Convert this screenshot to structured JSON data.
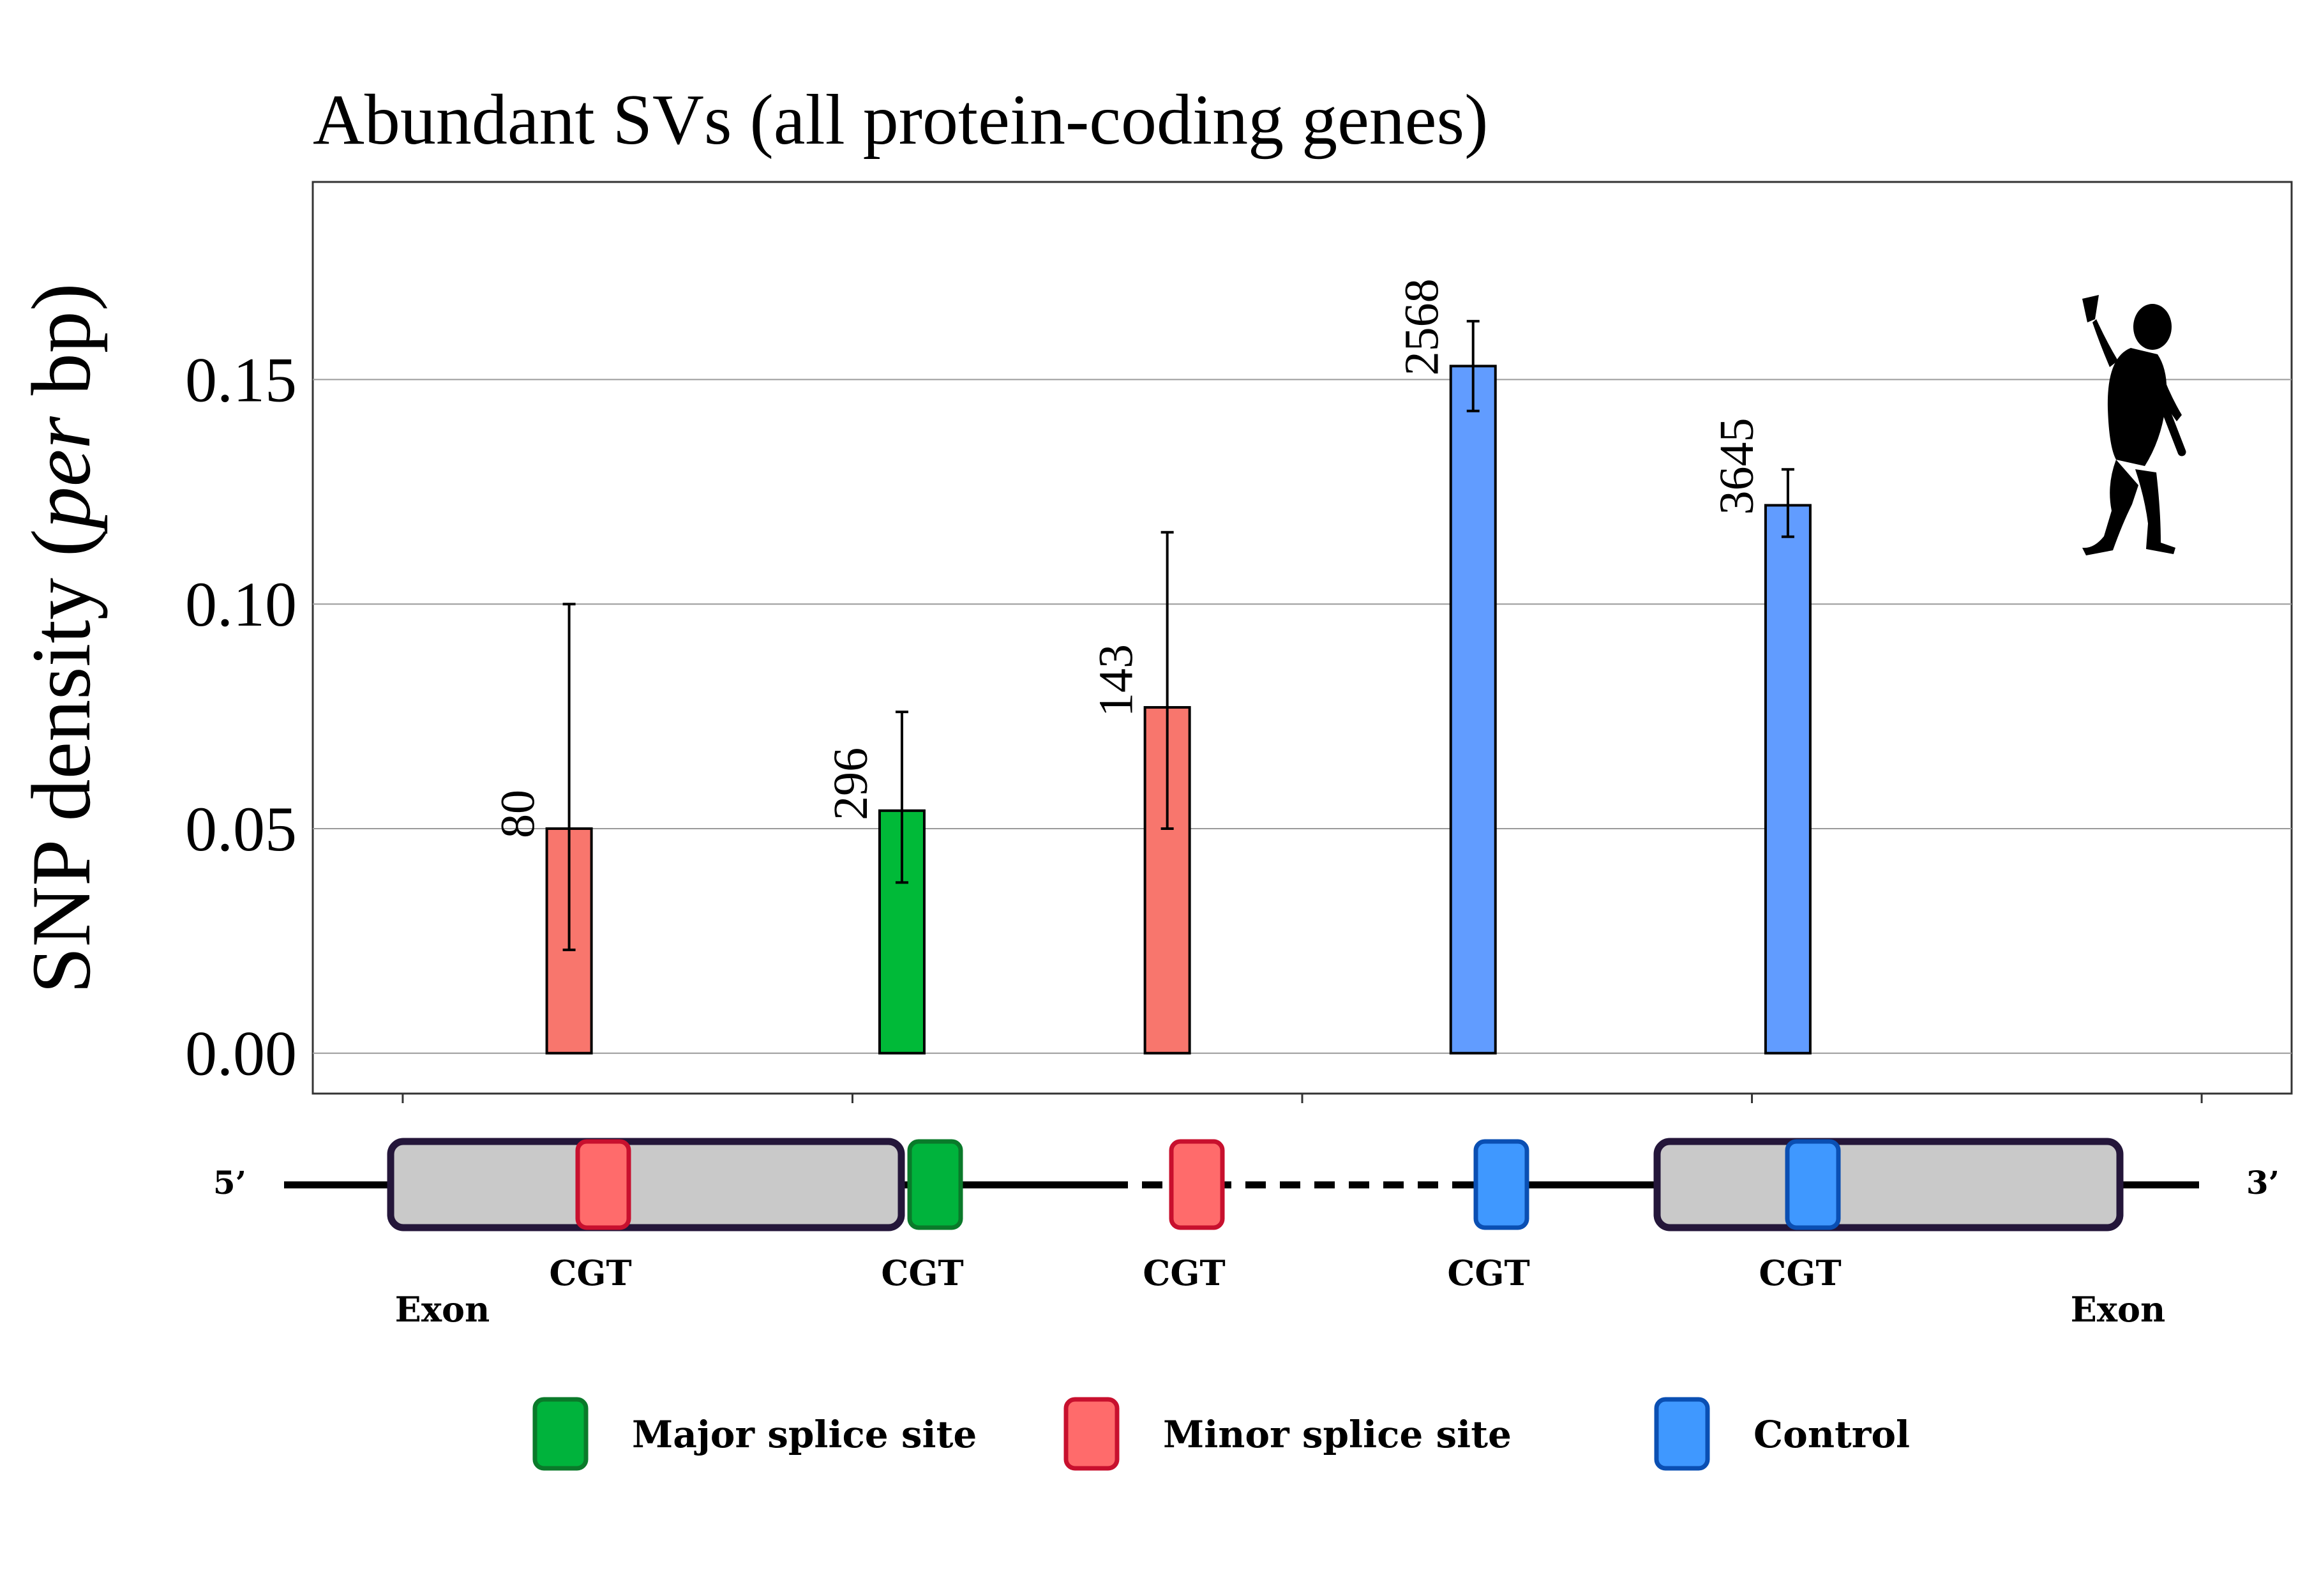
{
  "chart_data": {
    "type": "bar",
    "title": "Abundant SVs (all protein-coding genes)",
    "ylabel_prefix": "SNP density (",
    "ylabel_italic": "per",
    "ylabel_suffix": " bp)",
    "xlabel": "",
    "ylim": [
      -0.009,
      0.194
    ],
    "yticks": [
      "0.00",
      "0.05",
      "0.10",
      "0.15"
    ],
    "ytick_values": [
      0,
      0.05,
      0.1,
      0.15
    ],
    "grid": "horizontal",
    "bars": [
      {
        "x": 0.37,
        "value": 0.05,
        "err_low": 0.023,
        "err_high": 0.1,
        "count": "80",
        "category": "Minor splice site",
        "color": "#f8766d"
      },
      {
        "x": 1.11,
        "value": 0.054,
        "err_low": 0.038,
        "err_high": 0.076,
        "count": "296",
        "category": "Major splice site",
        "color": "#00ba38"
      },
      {
        "x": 1.7,
        "value": 0.077,
        "err_low": 0.05,
        "err_high": 0.116,
        "count": "143",
        "category": "Minor splice site",
        "color": "#f8766d"
      },
      {
        "x": 2.38,
        "value": 0.153,
        "err_low": 0.143,
        "err_high": 0.163,
        "count": "2568",
        "category": "Control",
        "color": "#619cff"
      },
      {
        "x": 3.08,
        "value": 0.122,
        "err_low": 0.115,
        "err_high": 0.13,
        "count": "3645",
        "category": "Control",
        "color": "#619cff"
      }
    ],
    "x_range": [
      -0.2,
      4.2
    ],
    "x_ticks": [
      0,
      1,
      2,
      3,
      4
    ]
  },
  "gene_diagram": {
    "five_prime": "5’",
    "three_prime": "3’",
    "exon_label": "Exon",
    "site_label": "CGT",
    "sites": [
      "Minor splice site",
      "Major splice site",
      "Minor splice site",
      "Control",
      "Control"
    ]
  },
  "legend": {
    "items": [
      {
        "label": "Major splice site",
        "fill": "#00b33c",
        "stroke": "#0a7a2a"
      },
      {
        "label": "Minor splice site",
        "fill": "#ff6b6b",
        "stroke": "#c8102e"
      },
      {
        "label": "Control",
        "fill": "#3f98ff",
        "stroke": "#0a4fb3"
      }
    ]
  },
  "colors": {
    "exon_fill": "#c9c9c9",
    "exon_stroke": "#24163a",
    "gridline": "#9a9a9a"
  },
  "icons": [
    "human-silhouette-icon"
  ]
}
